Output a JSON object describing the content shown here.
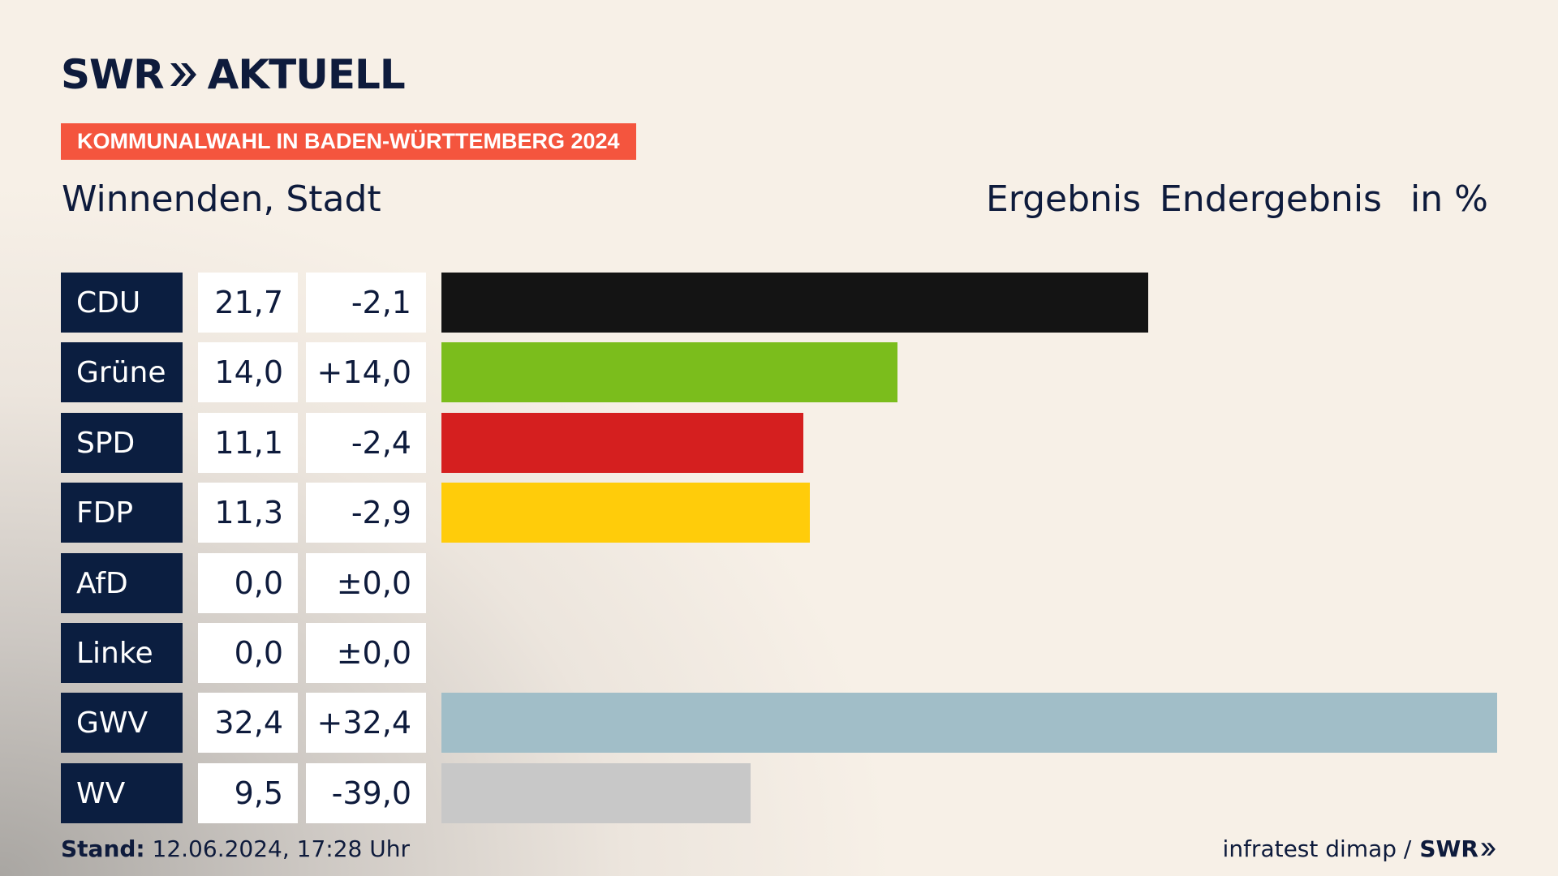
{
  "brand": {
    "swr": "SWR",
    "aktuell": "AKTUELL"
  },
  "tag": "KOMMUNALWAHL IN BADEN-WÜRTTEMBERG 2024",
  "place": "Winnenden, Stadt",
  "header": {
    "ergebnis": "Ergebnis",
    "endergebnis": "Endergebnis",
    "unit": "in %"
  },
  "chart_data": {
    "type": "bar",
    "orientation": "horizontal",
    "max": 32.4,
    "categories": [
      "CDU",
      "Grüne",
      "SPD",
      "FDP",
      "AfD",
      "Linke",
      "GWV",
      "WV"
    ],
    "rows": [
      {
        "party": "CDU",
        "value": 21.7,
        "value_label": "21,7",
        "diff_label": "-2,1",
        "color": "#141414"
      },
      {
        "party": "Grüne",
        "value": 14.0,
        "value_label": "14,0",
        "diff_label": "+14,0",
        "color": "#7bbd1c"
      },
      {
        "party": "SPD",
        "value": 11.1,
        "value_label": "11,1",
        "diff_label": "-2,4",
        "color": "#d51f1f"
      },
      {
        "party": "FDP",
        "value": 11.3,
        "value_label": "11,3",
        "diff_label": "-2,9",
        "color": "#ffcc0a"
      },
      {
        "party": "AfD",
        "value": 0.0,
        "value_label": "0,0",
        "diff_label": "±0,0",
        "color": "#1aa0d8"
      },
      {
        "party": "Linke",
        "value": 0.0,
        "value_label": "0,0",
        "diff_label": "±0,0",
        "color": "#b12a6b"
      },
      {
        "party": "GWV",
        "value": 32.4,
        "value_label": "32,4",
        "diff_label": "+32,4",
        "color": "#a1bec8"
      },
      {
        "party": "WV",
        "value": 9.5,
        "value_label": "9,5",
        "diff_label": "-39,0",
        "color": "#c8c8c8"
      }
    ]
  },
  "footer": {
    "stand_label": "Stand:",
    "stand_value": "12.06.2024, 17:28 Uhr",
    "source": "infratest dimap /",
    "source_brand": "SWR"
  }
}
